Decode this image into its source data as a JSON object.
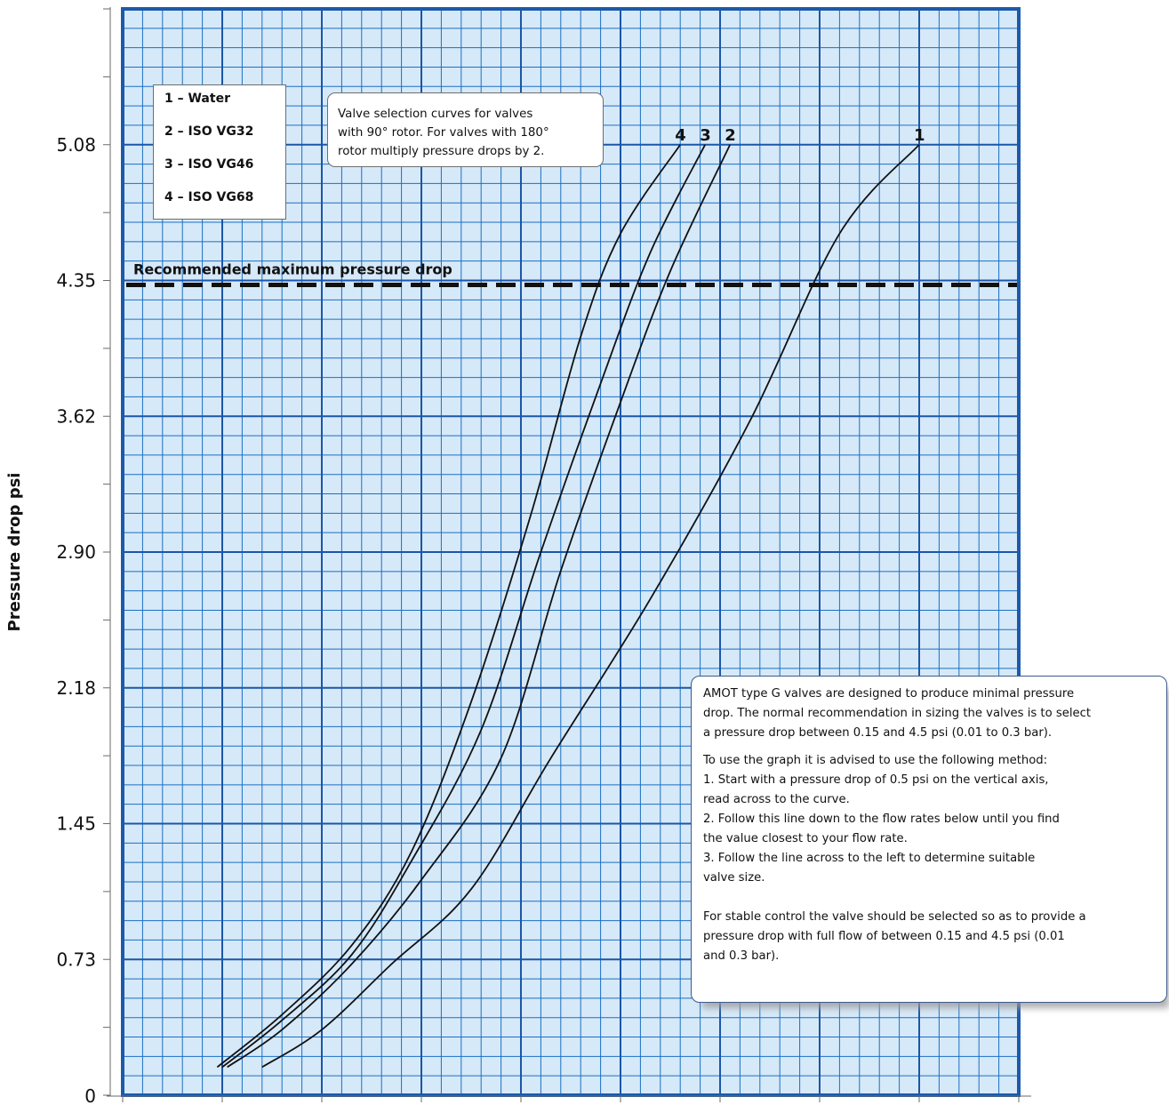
{
  "chart_data": {
    "type": "line",
    "ylabel": "Pressure drop psi",
    "yticks": [
      "0",
      "0.73",
      "1.45",
      "2.18",
      "2.90",
      "3.62",
      "4.35",
      "5.08"
    ],
    "ytick_values": [
      0,
      0.725,
      1.45,
      2.175,
      2.9,
      3.625,
      4.35,
      5.075
    ],
    "ylim": [
      0,
      5.8
    ],
    "xlim": [
      0,
      9
    ],
    "reference_line": {
      "label": "Recommended maximum pressure drop",
      "y": 4.35,
      "style": "dashed"
    },
    "series": [
      {
        "name": "1",
        "points": [
          [
            1.4,
            0.15
          ],
          [
            2.0,
            0.35
          ],
          [
            2.7,
            0.7
          ],
          [
            3.5,
            1.1
          ],
          [
            4.3,
            1.8
          ],
          [
            5.3,
            2.65
          ],
          [
            6.3,
            3.6
          ],
          [
            7.2,
            4.6
          ],
          [
            8.0,
            5.075
          ]
        ]
      },
      {
        "name": "2",
        "points": [
          [
            1.05,
            0.15
          ],
          [
            1.6,
            0.35
          ],
          [
            2.3,
            0.7
          ],
          [
            3.0,
            1.15
          ],
          [
            3.8,
            1.8
          ],
          [
            4.4,
            2.8
          ],
          [
            5.0,
            3.7
          ],
          [
            5.5,
            4.4
          ],
          [
            6.1,
            5.075
          ]
        ]
      },
      {
        "name": "3",
        "points": [
          [
            1.0,
            0.15
          ],
          [
            1.6,
            0.4
          ],
          [
            2.3,
            0.75
          ],
          [
            2.9,
            1.25
          ],
          [
            3.6,
            1.95
          ],
          [
            4.2,
            2.9
          ],
          [
            4.8,
            3.8
          ],
          [
            5.3,
            4.5
          ],
          [
            5.85,
            5.075
          ]
        ]
      },
      {
        "name": "4",
        "points": [
          [
            0.95,
            0.15
          ],
          [
            1.6,
            0.43
          ],
          [
            2.3,
            0.8
          ],
          [
            2.9,
            1.3
          ],
          [
            3.5,
            2.1
          ],
          [
            4.1,
            3.1
          ],
          [
            4.6,
            4.05
          ],
          [
            5.0,
            4.6
          ],
          [
            5.6,
            5.075
          ]
        ]
      }
    ],
    "colors": {
      "background": "#d6e9f9",
      "minor_grid": "#1b6fc2",
      "major_grid": "#1b56a8",
      "frame": "#1c5aab",
      "curves": "#111111"
    }
  },
  "legend": {
    "items": [
      "1 – Water",
      "2 – ISO VG32",
      "3 – ISO VG46",
      "4 – ISO VG68"
    ]
  },
  "note": {
    "lines": [
      "Valve selection curves for valves",
      "with 90° rotor. For valves with 180°",
      "rotor multiply pressure drops by 2."
    ]
  },
  "info": {
    "para1": [
      "AMOT type G valves are designed to produce minimal pressure",
      "drop. The normal recommendation in sizing the valves is to select",
      "a pressure drop between 0.15 and 4.5 psi (0.01 to 0.3 bar)."
    ],
    "para2": [
      "To use the graph it is advised to use the following method:",
      "1.  Start with a pressure drop of 0.5 psi on the vertical axis,",
      "read across to the curve.",
      "2.  Follow this line down to the flow rates below until you find",
      "the value closest to your flow rate.",
      "3.  Follow the line across to the left to determine suitable",
      "valve size."
    ],
    "para3": [
      "For stable control the valve should be selected so as to provide a",
      "pressure drop with full flow of between 0.15 and 4.5 psi (0.01",
      "and 0.3 bar)."
    ]
  }
}
